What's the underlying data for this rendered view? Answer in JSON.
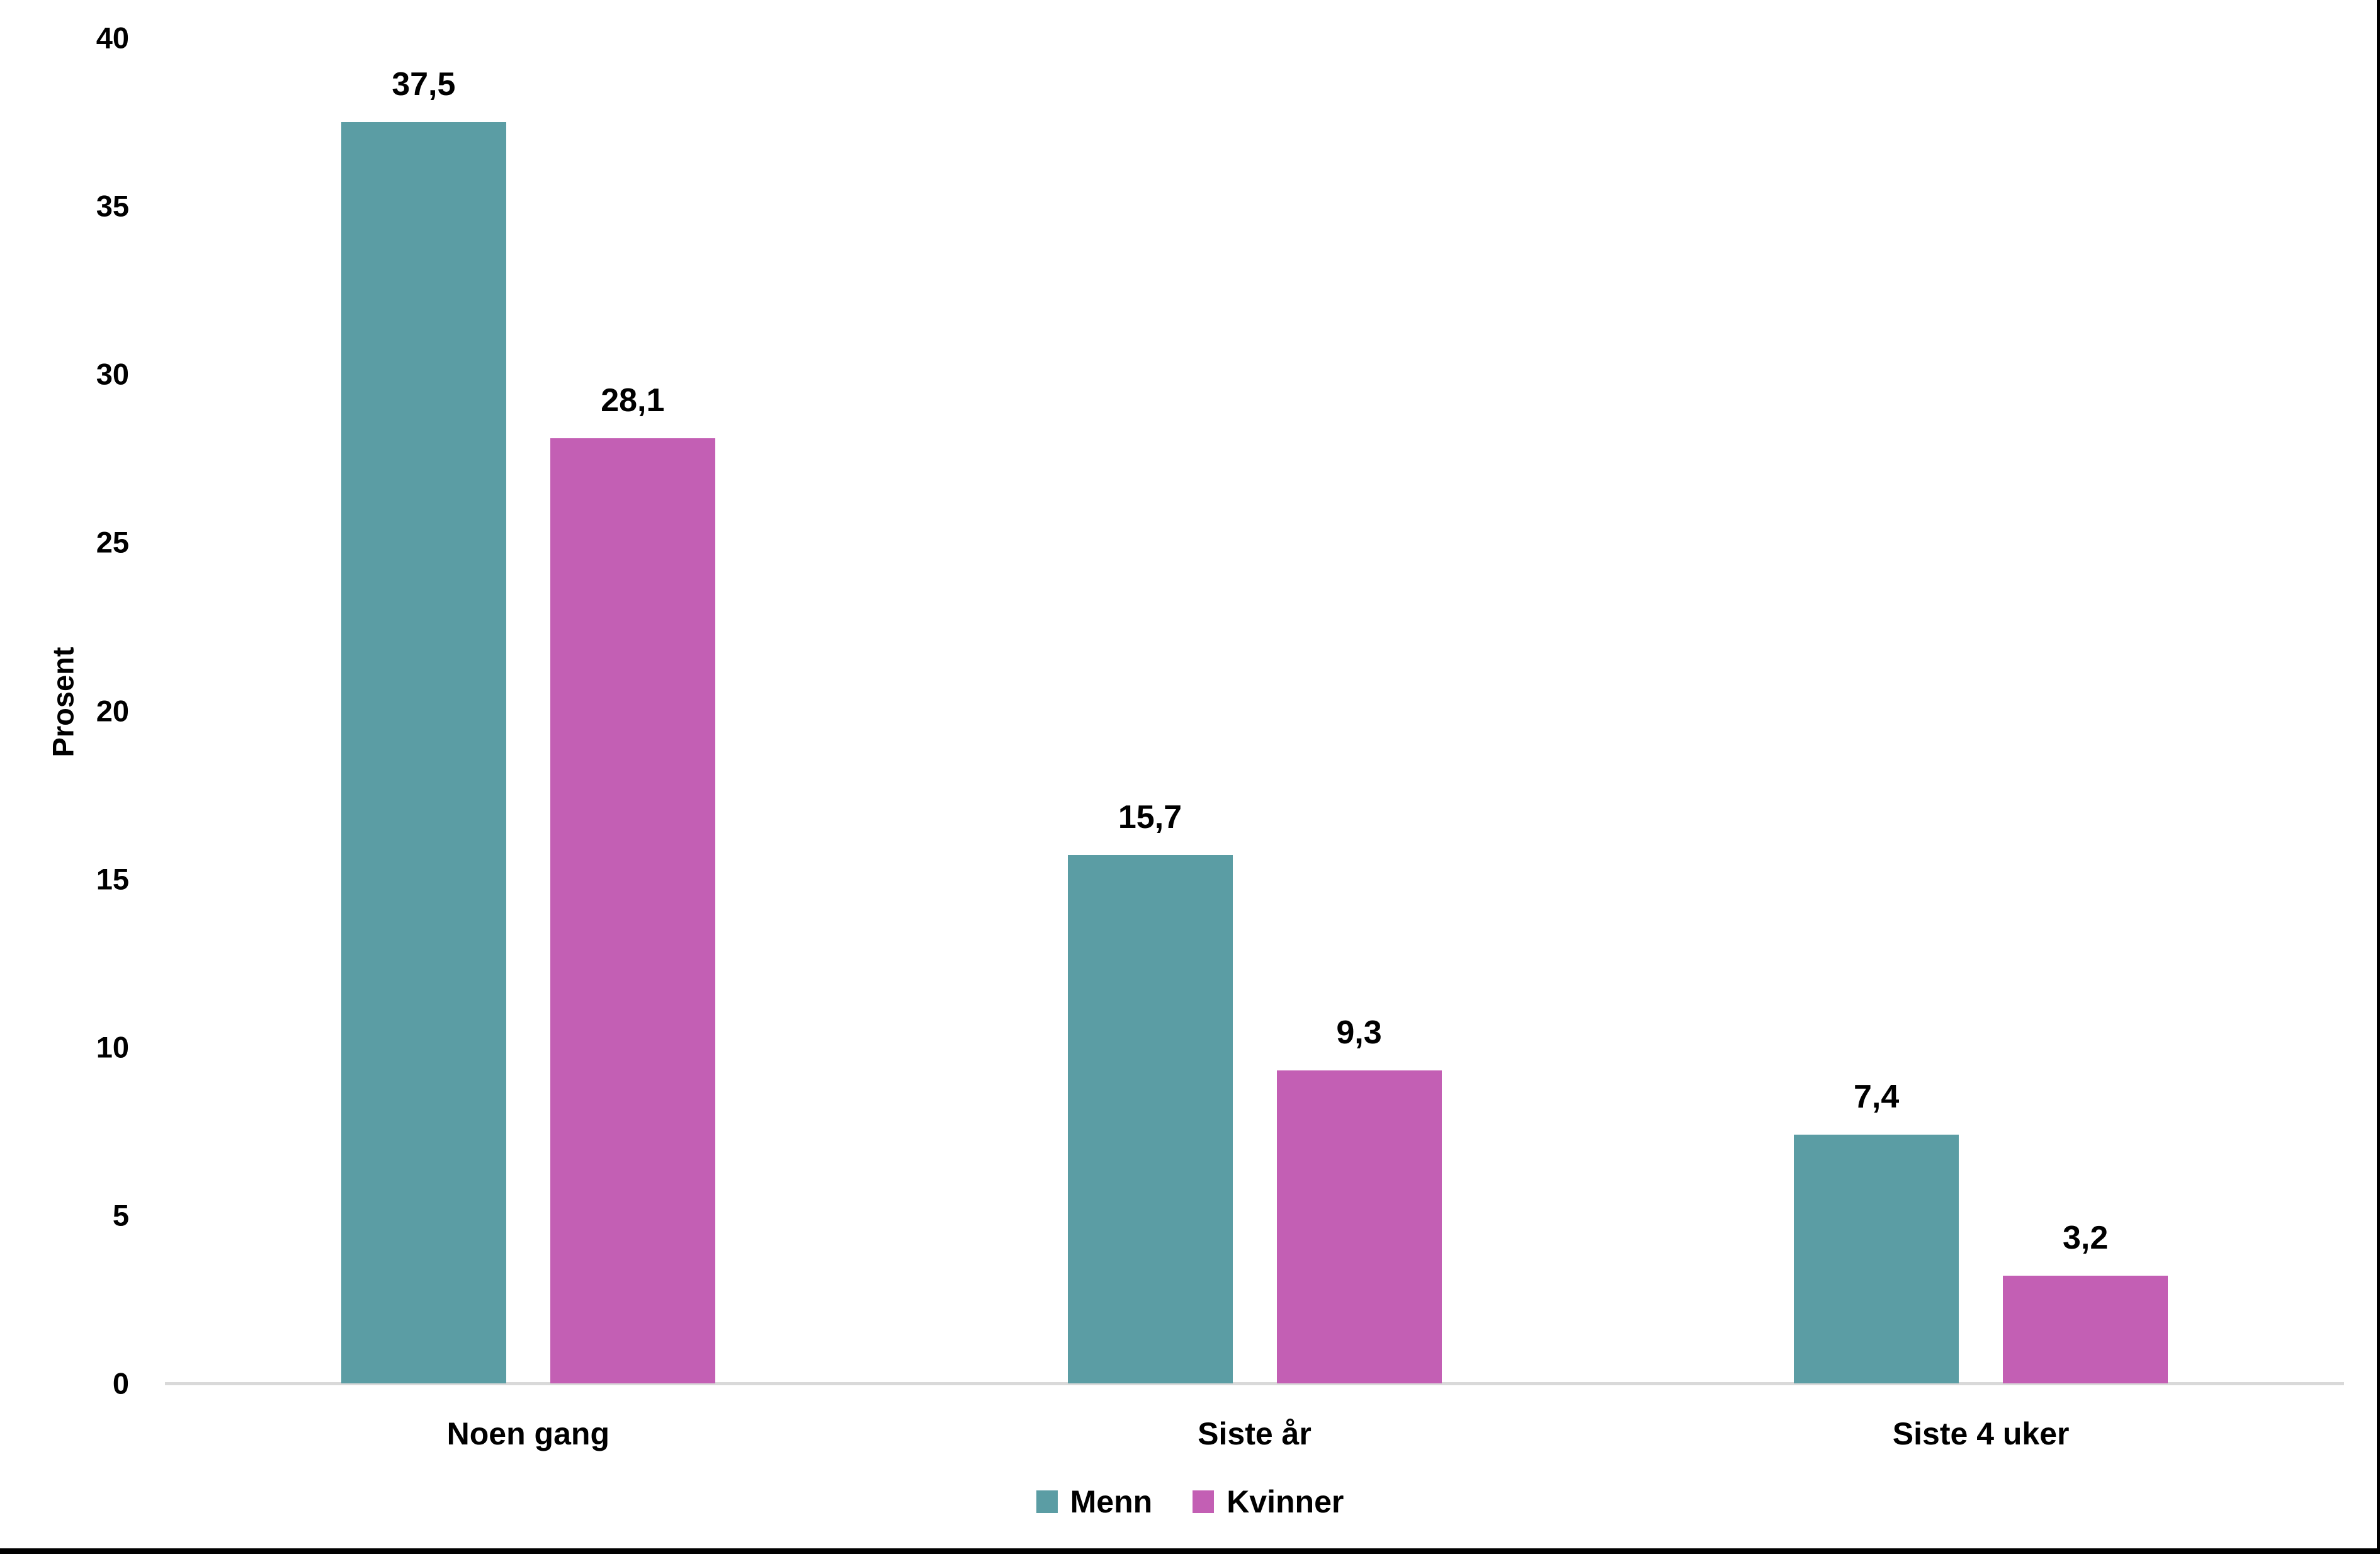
{
  "chart_data": {
    "type": "bar",
    "title": "",
    "xlabel": "",
    "ylabel": "Prosent",
    "categories": [
      "Noen gang",
      "Siste år",
      "Siste 4 uker"
    ],
    "series": [
      {
        "name": "Menn",
        "color": "#5B9DA4",
        "values": [
          37.5,
          15.7,
          7.4
        ],
        "labels": [
          "37,5",
          "15,7",
          "7,4"
        ]
      },
      {
        "name": "Kvinner",
        "color": "#C35FB4",
        "values": [
          28.1,
          9.3,
          3.2
        ],
        "labels": [
          "28,1",
          "9,3",
          "3,2"
        ]
      }
    ],
    "ylim": [
      0,
      40
    ],
    "y_ticks": [
      0,
      5,
      10,
      15,
      20,
      25,
      30,
      35,
      40
    ],
    "decimal_separator": ",",
    "grid": false,
    "legend_position": "bottom",
    "axis_line_color": "#D9D9D9",
    "frame_border_color": "#000000",
    "background_color": "#FFFFFF",
    "text_color": "#000000"
  }
}
